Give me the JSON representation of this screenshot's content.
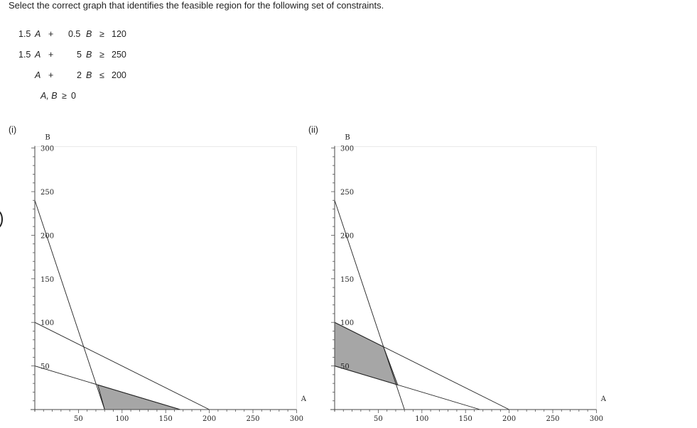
{
  "question": "Select the correct graph that identifies the feasible region for the following set of constraints.",
  "constraints": [
    {
      "coefA": "1.5",
      "varA": "A",
      "plus": "+",
      "coefB": "0.5",
      "varB": "B",
      "op": "≥",
      "rhs": "120"
    },
    {
      "coefA": "1.5",
      "varA": "A",
      "plus": "+",
      "coefB": "5",
      "varB": "B",
      "op": "≥",
      "rhs": "250"
    },
    {
      "coefA": "",
      "varA": "A",
      "plus": "+",
      "coefB": "2",
      "varB": "B",
      "op": "≤",
      "rhs": "200"
    }
  ],
  "nonnegativity": {
    "vars": "A, B",
    "op": "≥",
    "rhs": "0"
  },
  "options": [
    {
      "label": "(i)"
    },
    {
      "label": "(ii)"
    }
  ],
  "graph_axes": {
    "x_label": "A",
    "y_label": "B",
    "x_ticks": [
      "50",
      "100",
      "150",
      "200",
      "250",
      "300"
    ],
    "y_ticks": [
      "50",
      "100",
      "150",
      "200",
      "250",
      "300"
    ]
  },
  "chart_data": [
    {
      "type": "area",
      "option": "(i)",
      "xlabel": "A",
      "ylabel": "B",
      "xlim": [
        0,
        300
      ],
      "ylim": [
        0,
        300
      ],
      "lines": [
        {
          "points": [
            [
              0,
              240
            ],
            [
              80,
              0
            ]
          ]
        },
        {
          "points": [
            [
              0,
              50
            ],
            [
              166.7,
              0
            ]
          ]
        },
        {
          "points": [
            [
              0,
              100
            ],
            [
              200,
              0
            ]
          ]
        }
      ],
      "shaded_region": [
        [
          80,
          0
        ],
        [
          166.7,
          0
        ],
        [
          72.2,
          28.3
        ]
      ],
      "fill_color": "#a6a6a6"
    },
    {
      "type": "area",
      "option": "(ii)",
      "xlabel": "A",
      "ylabel": "B",
      "xlim": [
        0,
        300
      ],
      "ylim": [
        0,
        300
      ],
      "lines": [
        {
          "points": [
            [
              0,
              240
            ],
            [
              80,
              0
            ]
          ]
        },
        {
          "points": [
            [
              0,
              50
            ],
            [
              166.7,
              0
            ]
          ]
        },
        {
          "points": [
            [
              0,
              100
            ],
            [
              200,
              0
            ]
          ]
        }
      ],
      "shaded_region": [
        [
          0,
          100
        ],
        [
          0,
          50
        ],
        [
          72.2,
          28.3
        ],
        [
          56,
          72
        ]
      ],
      "fill_color": "#a6a6a6"
    }
  ]
}
